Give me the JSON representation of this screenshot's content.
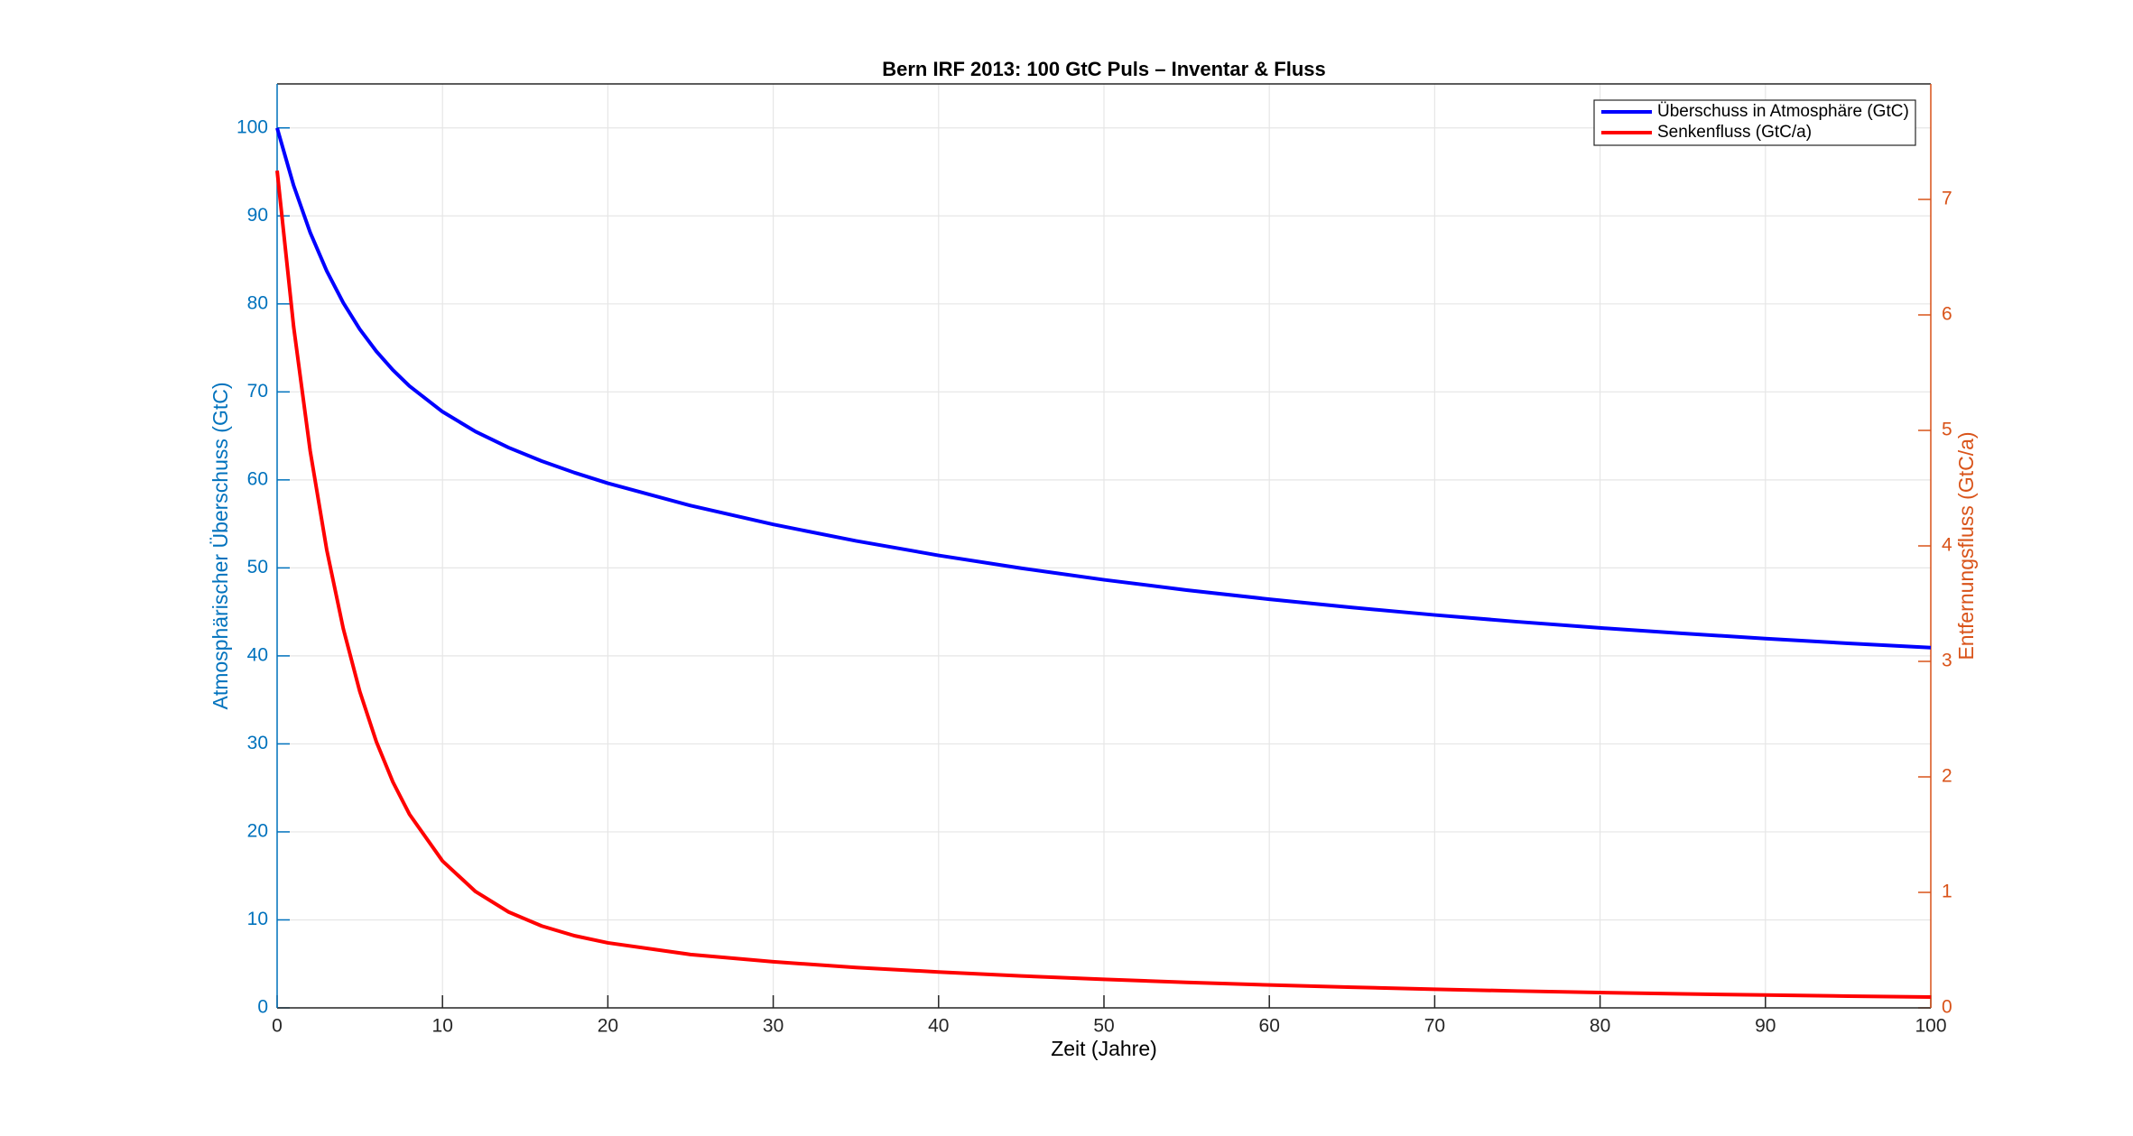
{
  "chart_data": {
    "type": "line",
    "title": "Bern IRF 2013: 100 GtC Puls – Inventar & Fluss",
    "xlabel": "Zeit (Jahre)",
    "ylabel": "Atmosphärischer Überschuss (GtC)",
    "y2label": "Entfernungsfluss (GtC/a)",
    "x": [
      0,
      1,
      2,
      3,
      4,
      5,
      6,
      7,
      8,
      10,
      12,
      14,
      16,
      18,
      20,
      25,
      30,
      35,
      40,
      45,
      50,
      55,
      60,
      65,
      70,
      75,
      80,
      85,
      90,
      95,
      100
    ],
    "series": [
      {
        "name": "Überschuss in Atmosphäre (GtC)",
        "color": "#0000ff",
        "values": [
          100,
          93.45,
          88.11,
          83.74,
          80.13,
          77.12,
          74.61,
          72.49,
          70.67,
          67.75,
          65.49,
          63.67,
          62.14,
          60.81,
          59.62,
          57.08,
          54.94,
          53.07,
          51.42,
          49.96,
          48.65,
          47.48,
          46.44,
          45.5,
          44.65,
          43.88,
          43.18,
          42.55,
          41.97,
          41.43,
          40.94
        ]
      },
      {
        "name": "Senkenfluss (GtC/a)",
        "color": "#ff0000",
        "axis": "y2",
        "values": [
          7.249,
          5.897,
          4.822,
          3.966,
          3.284,
          2.739,
          2.305,
          1.956,
          1.677,
          1.272,
          1.007,
          0.83,
          0.709,
          0.624,
          0.563,
          0.462,
          0.399,
          0.35,
          0.311,
          0.276,
          0.247,
          0.221,
          0.198,
          0.179,
          0.161,
          0.146,
          0.133,
          0.121,
          0.111,
          0.102,
          0.094
        ]
      }
    ],
    "xlim": [
      0,
      100
    ],
    "xticks": [
      0,
      10,
      20,
      30,
      40,
      50,
      60,
      70,
      80,
      90,
      100
    ],
    "ylim": [
      0,
      105
    ],
    "yticks": [
      0,
      10,
      20,
      30,
      40,
      50,
      60,
      70,
      80,
      90,
      100
    ],
    "y2lim": [
      0,
      8
    ],
    "y2ticks": [
      0,
      1,
      2,
      3,
      4,
      5,
      6,
      7
    ],
    "grid": true,
    "legend": "top-right",
    "ycolor": "#0072bd",
    "y2color": "#d95319"
  }
}
